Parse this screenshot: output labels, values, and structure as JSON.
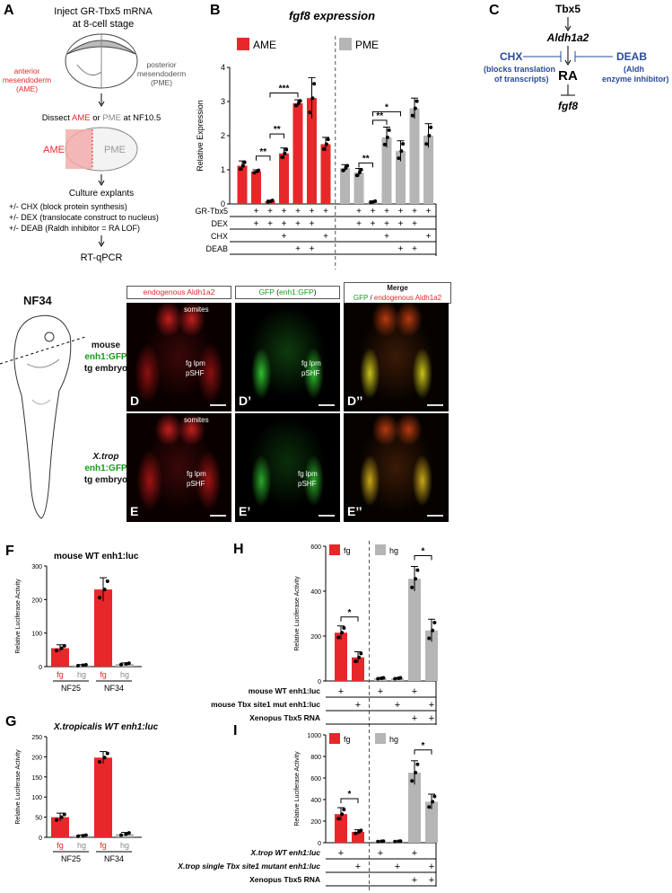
{
  "panelA": {
    "letter": "A",
    "title1": "Inject GR-Tbx5 mRNA",
    "title2": "at 8-cell stage",
    "ame1": "anterior",
    "ame2": "mesendoderm",
    "ame3": "(AME)",
    "pme1": "posterior",
    "pme2": "mesendoderm",
    "pme3": "(PME)",
    "dissect_a": "Dissect ",
    "dissect_b": "AME",
    "dissect_c": " or ",
    "dissect_d": "PME",
    "dissect_e": " at NF10.5",
    "ame_tag": "AME",
    "pme_tag": "PME",
    "culture": "Culture explants",
    "cond1": "+/- CHX (block protein synthesis)",
    "cond2": "+/- DEX (translocate construct to nucleus)",
    "cond3": "+/- DEAB (Raldh inhibitor = RA LOF)",
    "readout": "RT-qPCR"
  },
  "panelC": {
    "letter": "C",
    "tbx5": "Tbx5",
    "aldh": "Aldh1a2",
    "ra": "RA",
    "fgf8": "fgf8",
    "chx": "CHX",
    "chx1": "(blocks translation",
    "chx2": "of transcripts)",
    "deab": "DEAB",
    "deab1": "(Aldh",
    "deab2": "enzyme inhibitor)"
  },
  "panelsDE": {
    "nf": "NF34",
    "row1_a": "mouse",
    "row1_b": "enh1:GFP",
    "row1_c": "tg embryo",
    "row2_a": "X.trop",
    "row2_b": "enh1:GFP",
    "row2_c": "tg embryo",
    "col1": "endogenous Aldh1a2",
    "col2a": "GFP",
    "col2b": " (",
    "col2c": "enh1:GFP",
    "col2d": ")",
    "col3a": "Merge",
    "col3b": "GFP",
    "col3c": " / ",
    "col3d": "endogenous Aldh1a2",
    "somites": "somites",
    "fglpm": "fg lpm",
    "pshf": "pSHF",
    "D": "D",
    "D1": "D’",
    "D2": "D’’",
    "E": "E",
    "E1": "E’",
    "E2": "E’’"
  },
  "chart_data": [
    {
      "panel": "B",
      "type": "bar",
      "title": "fgf8  expression",
      "ylabel": "Relative Expression",
      "ylim": [
        0,
        4
      ],
      "yticks": [
        0,
        1,
        2,
        3,
        4
      ],
      "legend": [
        "AME",
        "PME"
      ],
      "colors": {
        "AME": "#e8272a",
        "PME": "#b5b5b5"
      },
      "row_labels": [
        "GR-Tbx5",
        "DEX",
        "CHX",
        "DEAB"
      ],
      "conditions": [
        {
          "gr": "",
          "dex": "",
          "chx": "",
          "deab": ""
        },
        {
          "gr": "+",
          "dex": "+",
          "chx": "",
          "deab": ""
        },
        {
          "gr": "+",
          "dex": "+",
          "chx": "",
          "deab": ""
        },
        {
          "gr": "+",
          "dex": "+",
          "chx": "+",
          "deab": ""
        },
        {
          "gr": "+",
          "dex": "+",
          "chx": "",
          "deab": "+"
        },
        {
          "gr": "+",
          "dex": "+",
          "chx": "",
          "deab": "+"
        },
        {
          "gr": "+",
          "dex": "",
          "chx": "+",
          "deab": ""
        }
      ],
      "series": [
        {
          "name": "AME",
          "values": [
            1.12,
            0.95,
            0.08,
            1.48,
            2.95,
            3.1,
            1.75
          ],
          "err": [
            0.14,
            0.05,
            0.03,
            0.16,
            0.1,
            0.6,
            0.2
          ]
        },
        {
          "name": "PME",
          "values": [
            1.05,
            0.92,
            0.06,
            1.95,
            1.55,
            2.8,
            2.0
          ],
          "err": [
            0.1,
            0.12,
            0.03,
            0.3,
            0.3,
            0.3,
            0.35
          ]
        }
      ],
      "significance": [
        "**",
        "**",
        "***",
        "**",
        "**",
        "*"
      ]
    },
    {
      "panel": "F",
      "type": "bar",
      "title": "mouse WT enh1:luc",
      "ylabel": "Relative Luciferase Activity",
      "ylim": [
        0,
        300
      ],
      "yticks": [
        0,
        100,
        200,
        300
      ],
      "categories": [
        "fg",
        "hg",
        "fg",
        "hg"
      ],
      "groups": [
        "NF25",
        "NF34"
      ],
      "values": [
        55,
        4,
        230,
        8
      ],
      "err": [
        10,
        2,
        35,
        3
      ],
      "colors": [
        "#e8272a",
        "#b5b5b5",
        "#e8272a",
        "#b5b5b5"
      ]
    },
    {
      "panel": "G",
      "type": "bar",
      "title": "X.tropicalis  WT enh1:luc",
      "ylabel": "Relative Luciferase Activity",
      "ylim": [
        0,
        250
      ],
      "yticks": [
        0,
        50,
        100,
        150,
        200,
        250
      ],
      "categories": [
        "fg",
        "hg",
        "fg",
        "hg"
      ],
      "groups": [
        "NF25",
        "NF34"
      ],
      "values": [
        50,
        4,
        198,
        8
      ],
      "err": [
        10,
        2,
        15,
        4
      ],
      "colors": [
        "#e8272a",
        "#b5b5b5",
        "#e8272a",
        "#b5b5b5"
      ]
    },
    {
      "panel": "H",
      "type": "bar",
      "ylabel": "Relative Luciferase Activity",
      "ylim": [
        0,
        600
      ],
      "yticks": [
        0,
        200,
        400,
        600
      ],
      "legend": [
        "fg",
        "hg"
      ],
      "values": [
        215,
        105,
        12,
        12,
        455,
        225
      ],
      "err": [
        30,
        25,
        3,
        3,
        55,
        50
      ],
      "colors": [
        "#e8272a",
        "#e8272a",
        "#b5b5b5",
        "#b5b5b5",
        "#b5b5b5",
        "#b5b5b5"
      ],
      "row_labels": [
        "mouse WT enh1:luc",
        "mouse  Tbx site1 mut enh1:luc",
        "Xenopus Tbx5 RNA"
      ],
      "rows": [
        [
          "+",
          "",
          "+",
          "",
          "+",
          ""
        ],
        [
          "",
          "+",
          "",
          "+",
          "",
          "+"
        ],
        [
          "",
          "",
          "",
          "",
          "+",
          "+"
        ]
      ],
      "significance": [
        "*",
        "*"
      ]
    },
    {
      "panel": "I",
      "type": "bar",
      "ylabel": "Relative Luciferase Activity",
      "ylim": [
        0,
        1000
      ],
      "yticks": [
        0,
        200,
        400,
        600,
        800,
        1000
      ],
      "legend": [
        "fg",
        "hg"
      ],
      "values": [
        265,
        100,
        12,
        12,
        650,
        380
      ],
      "err": [
        60,
        20,
        3,
        3,
        110,
        70
      ],
      "colors": [
        "#e8272a",
        "#e8272a",
        "#b5b5b5",
        "#b5b5b5",
        "#b5b5b5",
        "#b5b5b5"
      ],
      "row_labels": [
        "X.trop WT enh1:luc",
        "X.trop single Tbx site1 mutant enh1:luc",
        "Xenopus Tbx5 RNA"
      ],
      "rows": [
        [
          "+",
          "",
          "+",
          "",
          "+",
          ""
        ],
        [
          "",
          "+",
          "",
          "+",
          "",
          "+"
        ],
        [
          "",
          "",
          "",
          "",
          "+",
          "+"
        ]
      ],
      "significance": [
        "*",
        "*"
      ]
    }
  ]
}
